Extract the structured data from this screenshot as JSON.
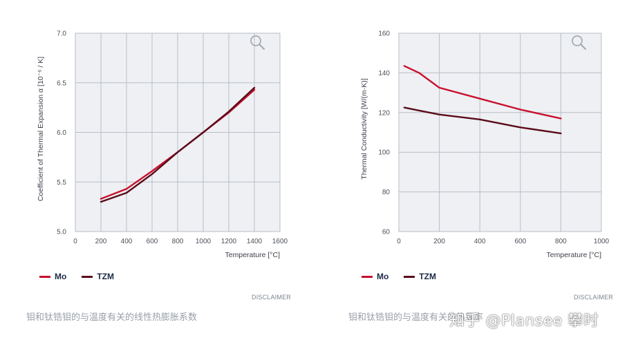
{
  "chart_data": [
    {
      "type": "line",
      "title": "",
      "xlabel": "Temperature [°C]",
      "ylabel": "Coefficient of Thermal Expansion α [10⁻⁶ / K]",
      "xlim": [
        0,
        1600
      ],
      "ylim": [
        5.0,
        7.0
      ],
      "x_ticks": [
        "0",
        "200",
        "400",
        "600",
        "800",
        "1000",
        "1200",
        "1400",
        "1600"
      ],
      "y_ticks": [
        "5.0",
        "5.5",
        "6.0",
        "6.5",
        "7.0"
      ],
      "grid": true,
      "legend_position": "bottom-left",
      "series": [
        {
          "name": "Mo",
          "color": "#c8102e",
          "x": [
            200,
            400,
            600,
            800,
            1000,
            1200,
            1400
          ],
          "y": [
            5.33,
            5.43,
            5.61,
            5.8,
            6.0,
            6.2,
            6.43
          ]
        },
        {
          "name": "TZM",
          "color": "#5a0b1a",
          "x": [
            200,
            400,
            600,
            800,
            1000,
            1200,
            1400
          ],
          "y": [
            5.3,
            5.39,
            5.58,
            5.8,
            6.0,
            6.21,
            6.45
          ]
        }
      ],
      "disclaimer": "DISCLAIMER",
      "caption": "钼和钛锆钼的与温度有关的线性热膨胀系数",
      "zoom_icon": "magnifier-icon"
    },
    {
      "type": "line",
      "title": "",
      "xlabel": "Temperature [°C]",
      "ylabel": "Thermal Conductivity [W/(m·K)]",
      "xlim": [
        0,
        1000
      ],
      "ylim": [
        60,
        160
      ],
      "x_ticks": [
        "0",
        "200",
        "400",
        "600",
        "800",
        "1000"
      ],
      "y_ticks": [
        "60",
        "80",
        "100",
        "120",
        "140",
        "160"
      ],
      "grid": true,
      "legend_position": "bottom-left",
      "series": [
        {
          "name": "Mo",
          "color": "#c8102e",
          "x": [
            27,
            100,
            200,
            400,
            600,
            800
          ],
          "y": [
            143.5,
            140,
            132.5,
            127,
            121.5,
            117
          ]
        },
        {
          "name": "TZM",
          "color": "#5a0b1a",
          "x": [
            27,
            100,
            200,
            400,
            600,
            800
          ],
          "y": [
            122.5,
            121,
            119,
            116.5,
            112.5,
            109.5
          ]
        }
      ],
      "disclaimer": "DISCLAIMER",
      "caption": "钼和钛锆钼的与温度有关的热导率",
      "zoom_icon": "magnifier-icon"
    }
  ],
  "watermark": "知乎 @Plansee 攀时"
}
